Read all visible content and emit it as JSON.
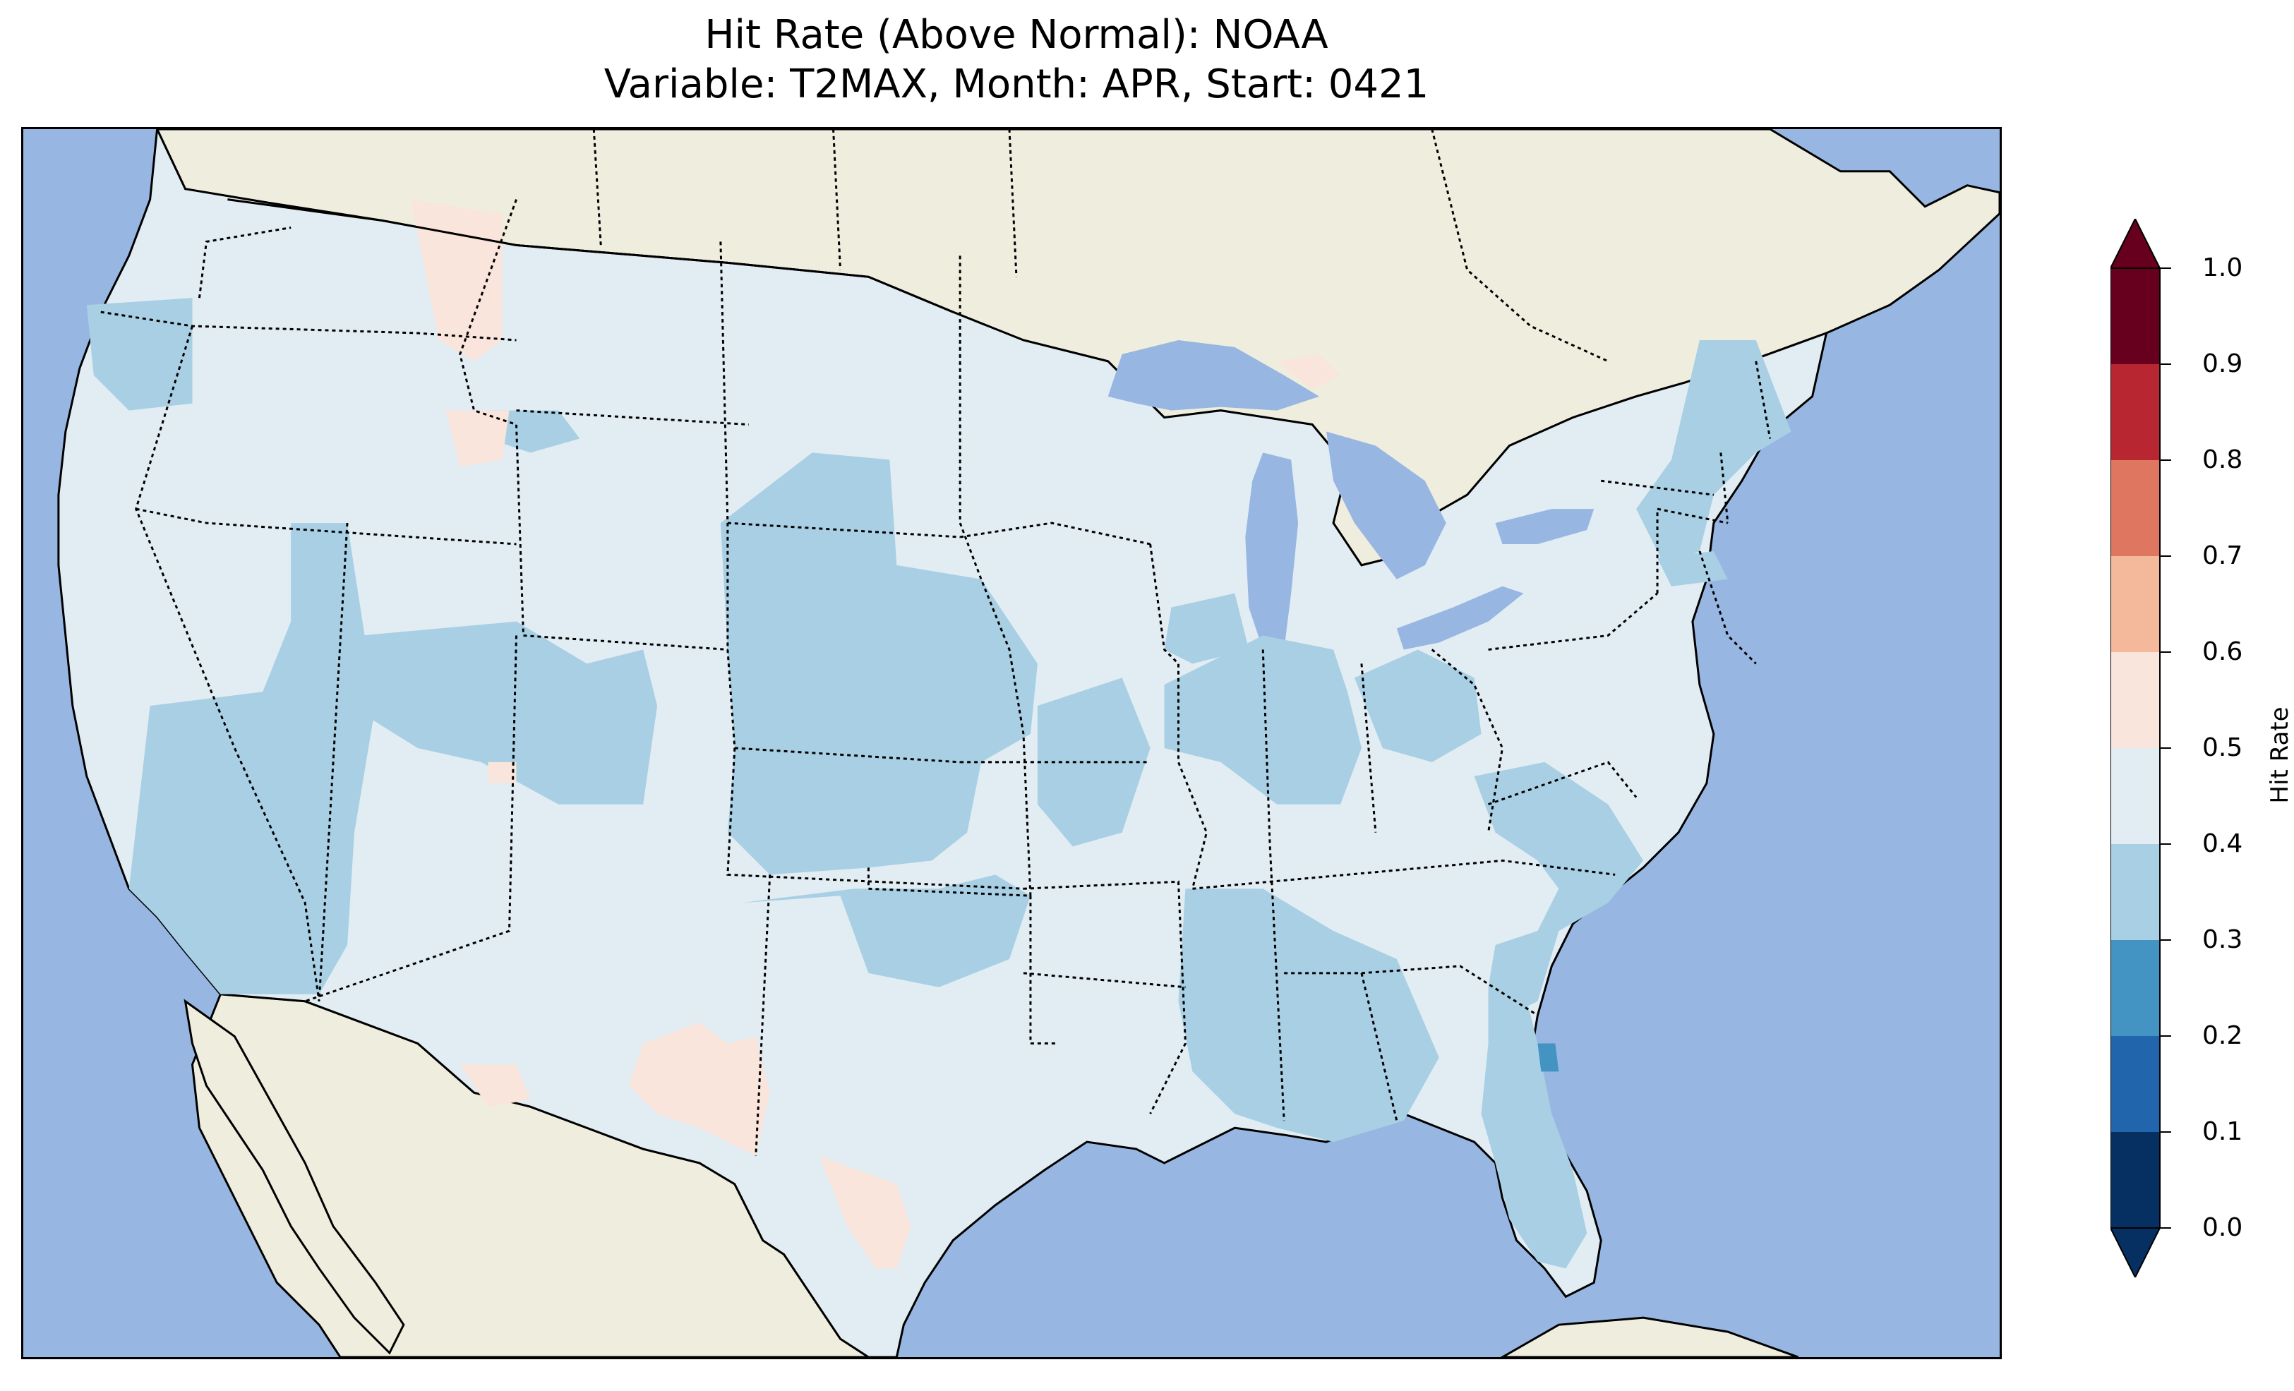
{
  "title": {
    "line1": "Hit Rate (Above Normal): NOAA",
    "line2": "Variable: T2MAX, Month: APR, Start: 0421"
  },
  "colors": {
    "ocean": "#97b6e1",
    "land": "#efedde",
    "bin_0_1": "#053061",
    "bin_1_2": "#2166ac",
    "bin_2_3": "#4393c3",
    "bin_3_4": "#a8cfe3",
    "bin_4_5": "#e1ecf3",
    "bin_5_6": "#f9e5dc",
    "bin_6_7": "#f4b89a",
    "bin_7_8": "#df7660",
    "bin_8_9": "#b72631",
    "bin_9_10": "#67001f"
  },
  "chart_data": {
    "type": "heatmap",
    "variable": "T2MAX",
    "month": "APR",
    "start": "0421",
    "source": "NOAA",
    "category": "Above Normal",
    "colorbar": {
      "label": "Hit Rate",
      "min": 0.0,
      "max": 1.0,
      "extend": "both",
      "ticks": [
        "0.0",
        "0.1",
        "0.2",
        "0.3",
        "0.4",
        "0.5",
        "0.6",
        "0.7",
        "0.8",
        "0.9",
        "1.0"
      ],
      "boundaries": [
        0.0,
        0.1,
        0.2,
        0.3,
        0.4,
        0.5,
        0.6,
        0.7,
        0.8,
        0.9,
        1.0
      ]
    },
    "regions": [
      {
        "region": "Continental US (background)",
        "hit_rate_bin": "0.4-0.5"
      },
      {
        "region": "California / Nevada / Great Basin",
        "hit_rate_bin": "0.3-0.4"
      },
      {
        "region": "Colorado / Wyoming / Utah",
        "hit_rate_bin": "0.3-0.4"
      },
      {
        "region": "Nebraska / Kansas / Oklahoma",
        "hit_rate_bin": "0.3-0.4"
      },
      {
        "region": "Iowa / Illinois / Indiana / Ohio",
        "hit_rate_bin": "0.3-0.4"
      },
      {
        "region": "Southeast (Mississippi to Georgia)",
        "hit_rate_bin": "0.3-0.4"
      },
      {
        "region": "Carolinas / Virginia",
        "hit_rate_bin": "0.3-0.4"
      },
      {
        "region": "Florida peninsula",
        "hit_rate_bin": "0.3-0.4"
      },
      {
        "region": "New England",
        "hit_rate_bin": "0.3-0.4"
      },
      {
        "region": "Idaho / Montana strip",
        "hit_rate_bin": "0.5-0.6"
      },
      {
        "region": "Southwest (New Mexico / West Texas)",
        "hit_rate_bin": "0.5-0.6"
      },
      {
        "region": "South Texas",
        "hit_rate_bin": "0.5-0.6"
      },
      {
        "region": "Upper Michigan (small area)",
        "hit_rate_bin": "0.5-0.6"
      },
      {
        "region": "Central Florida spot",
        "hit_rate_bin": "0.2-0.3"
      }
    ]
  }
}
